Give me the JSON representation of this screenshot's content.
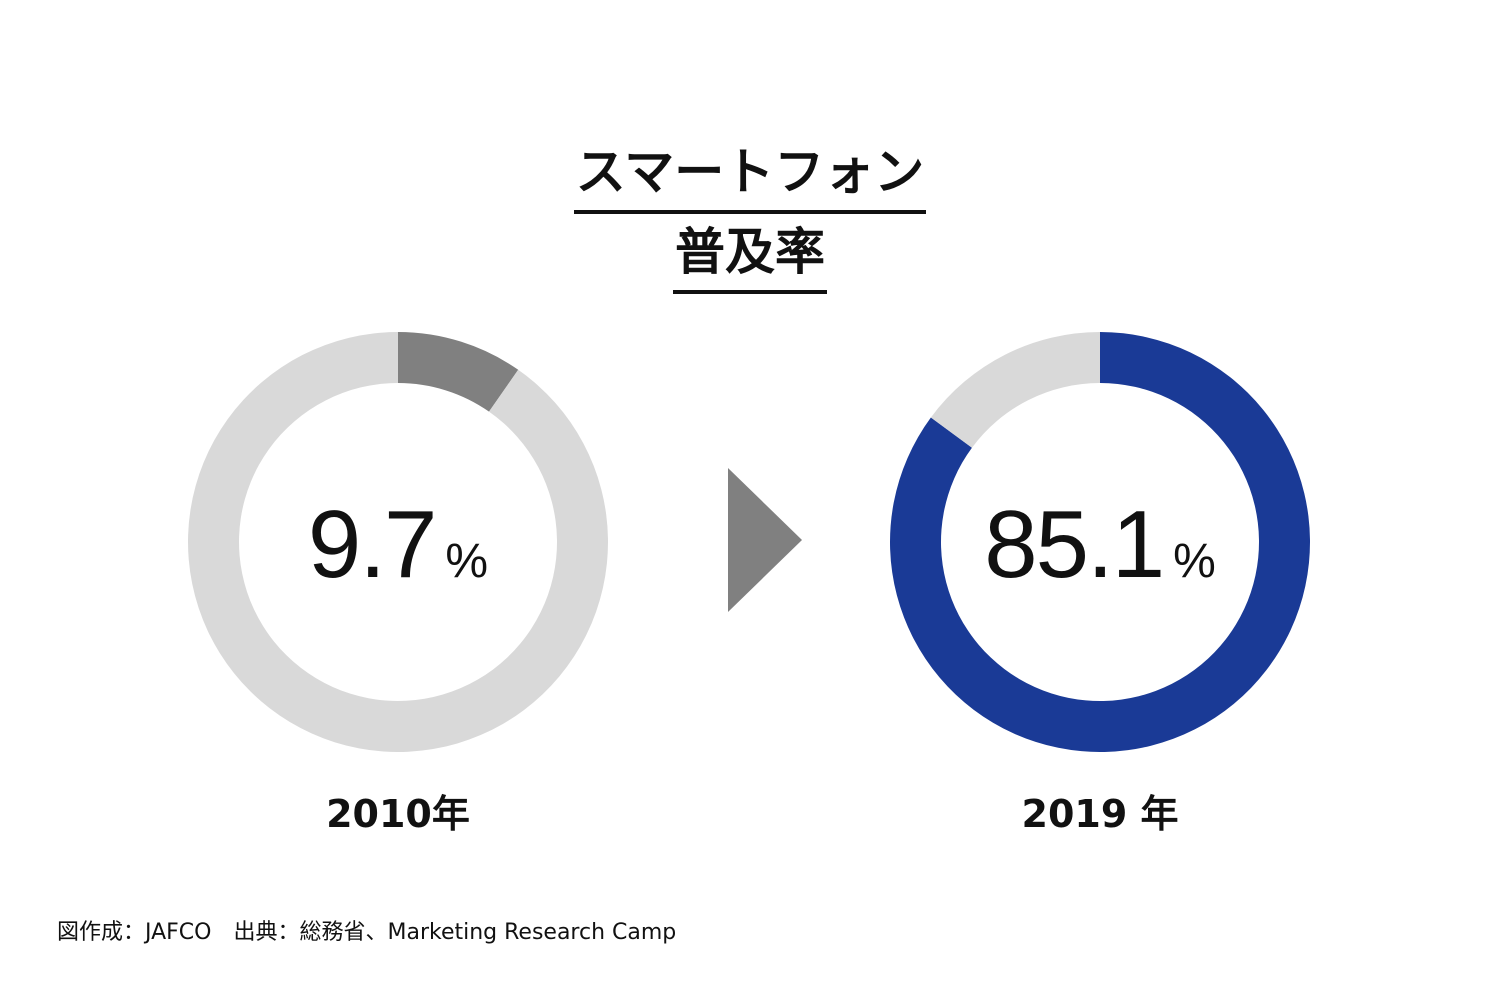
{
  "title": {
    "line1": "スマートフォン",
    "line2": "普及率"
  },
  "chart_data": [
    {
      "type": "pie",
      "variant": "donut",
      "year_label": "2010年",
      "value_text": "9.7",
      "unit": "%",
      "values": [
        9.7,
        90.3
      ],
      "colors": [
        "#808080",
        "#d9d9d9"
      ]
    },
    {
      "type": "pie",
      "variant": "donut",
      "year_label": "2019 年",
      "value_text": "85.1",
      "unit": "%",
      "values": [
        85.1,
        14.9
      ],
      "colors": [
        "#1a3a96",
        "#d9d9d9"
      ]
    }
  ],
  "arrow": {
    "icon": "triangle-right-icon",
    "color": "#808080"
  },
  "source": "図作成：JAFCO　出典：総務省、Marketing Research Camp"
}
